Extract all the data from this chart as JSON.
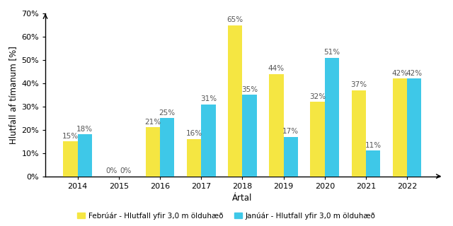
{
  "years": [
    2014,
    2015,
    2016,
    2017,
    2018,
    2019,
    2020,
    2021,
    2022
  ],
  "february": [
    15,
    0,
    21,
    16,
    65,
    44,
    32,
    37,
    42
  ],
  "january": [
    18,
    0,
    25,
    31,
    35,
    17,
    51,
    11,
    42
  ],
  "feb_color": "#F5E642",
  "jan_color": "#3EC8E8",
  "ylabel": "Hlutfall af tímanum [%]",
  "xlabel": "Ártal",
  "ylim": [
    0,
    70
  ],
  "yticks": [
    0,
    10,
    20,
    30,
    40,
    50,
    60,
    70
  ],
  "ytick_labels": [
    "0%",
    "10%",
    "20%",
    "30%",
    "40%",
    "50%",
    "60%",
    "70%"
  ],
  "legend_feb": "Febrúár - Hlutfall yfir 3,0 m ölduhæð",
  "legend_jan": "Janúár - Hlutfall yfir 3,0 m ölduhæð",
  "bar_width": 0.35,
  "label_fontsize": 7.5,
  "axis_label_fontsize": 8.5,
  "tick_fontsize": 8,
  "legend_fontsize": 7.5
}
